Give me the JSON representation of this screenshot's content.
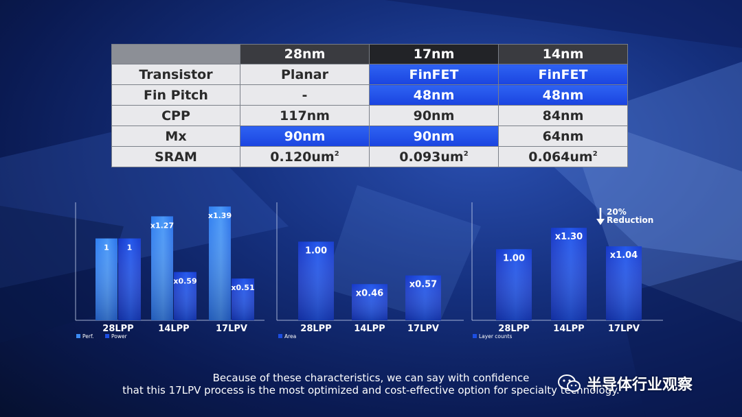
{
  "table": {
    "headers": [
      "",
      "28nm",
      "17nm",
      "14nm"
    ],
    "rows": [
      {
        "label": "Transistor",
        "cells": [
          "Planar",
          "FinFET",
          "FinFET"
        ],
        "highlight": [
          false,
          true,
          true
        ]
      },
      {
        "label": "Fin Pitch",
        "cells": [
          "-",
          "48nm",
          "48nm"
        ],
        "highlight": [
          false,
          true,
          true
        ]
      },
      {
        "label": "CPP",
        "cells": [
          "117nm",
          "90nm",
          "84nm"
        ],
        "highlight": [
          false,
          false,
          false
        ]
      },
      {
        "label": "Mx",
        "cells": [
          "90nm",
          "90nm",
          "64nm"
        ],
        "highlight": [
          true,
          true,
          false
        ]
      },
      {
        "label": "SRAM",
        "cells": [
          "0.120um",
          "0.093um",
          "0.064um"
        ],
        "sup": "2",
        "highlight": [
          false,
          false,
          false
        ]
      }
    ]
  },
  "chart_data": [
    {
      "type": "bar",
      "categories": [
        "28LPP",
        "14LPP",
        "17LPV"
      ],
      "series": [
        {
          "name": "Perf.",
          "values": [
            1,
            1.27,
            1.39
          ],
          "labels": [
            "1",
            "x1.27",
            "x1.39"
          ]
        },
        {
          "name": "Power",
          "values": [
            1,
            0.59,
            0.51
          ],
          "labels": [
            "1",
            "x0.59",
            "x0.51"
          ]
        }
      ],
      "ylim": [
        0,
        1.55
      ]
    },
    {
      "type": "bar",
      "categories": [
        "28LPP",
        "14LPP",
        "17LPV"
      ],
      "series": [
        {
          "name": "Area",
          "values": [
            1.0,
            0.46,
            0.57
          ],
          "labels": [
            "1.00",
            "x0.46",
            "x0.57"
          ]
        }
      ],
      "ylim": [
        0,
        1.5
      ]
    },
    {
      "type": "bar",
      "categories": [
        "28LPP",
        "14LPP",
        "17LPV"
      ],
      "series": [
        {
          "name": "Layer counts",
          "values": [
            1.0,
            1.3,
            1.04
          ],
          "labels": [
            "1.00",
            "x1.30",
            "x1.04"
          ]
        }
      ],
      "ylim": [
        0,
        1.62
      ],
      "annotation": {
        "line1": "20%",
        "line2": "Reduction"
      }
    }
  ],
  "caption": {
    "line1": "Because of these characteristics, we can say with confidence",
    "line2": "that this 17LPV process is the most optimized and cost-effective option for specialty technology."
  },
  "watermark": {
    "text": "半导体行业观察",
    "icon": "wechat-icon"
  },
  "colors": {
    "bar_light": "#3c8cf5",
    "bar_dark": "#1c4ee2",
    "highlight": "#1f4ae6",
    "header": "#2b2c31"
  }
}
